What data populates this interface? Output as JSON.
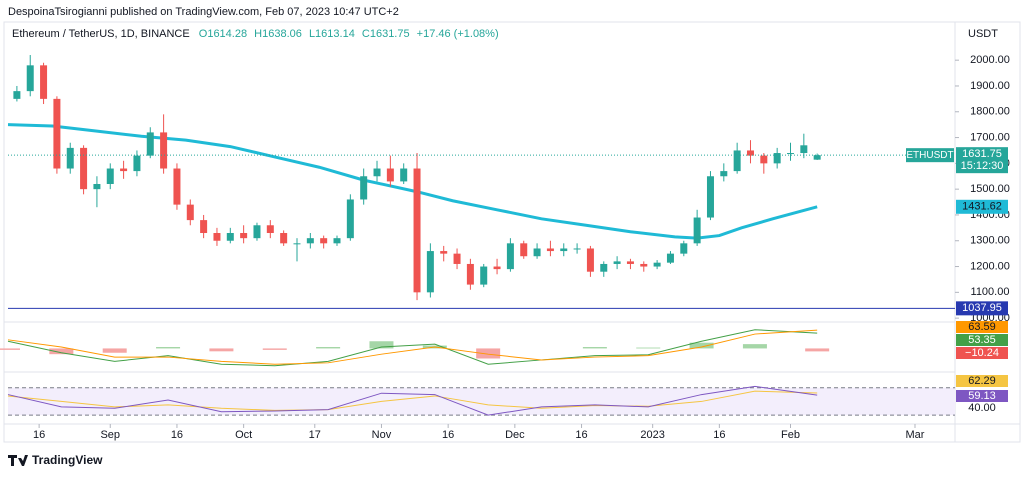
{
  "header": {
    "publisher": "DespoinaTsirogianni published on TradingView.com, Feb 07, 2023 10:47 UTC+2",
    "symbol": "Ethereum / TetherUS, 1D, BINANCE",
    "open": "O1614.28",
    "high": "H1638.06",
    "low": "L1613.14",
    "close": "C1631.75",
    "change": "+17.46 (+1.08%)"
  },
  "footer": "TradingView",
  "chart_data": {
    "type": "candlestick",
    "currency": "USDT",
    "symbol_tag": "ETHUSDT",
    "countdown": "15:12:30",
    "up_color": "#26a69a",
    "down_color": "#ef5350",
    "x": [
      2,
      5,
      8,
      11,
      14,
      17,
      20,
      23,
      26,
      29,
      32,
      35,
      38,
      41,
      44,
      47,
      50,
      53,
      56,
      59,
      62,
      65,
      68,
      71,
      74,
      77,
      80,
      83,
      86,
      89,
      92,
      95,
      98,
      101,
      104,
      107,
      110,
      113,
      116,
      119,
      122,
      125,
      128,
      131,
      134,
      137,
      140,
      143,
      146,
      149,
      152,
      155,
      158,
      161,
      164,
      167,
      170,
      173,
      176,
      179,
      182
    ],
    "open": [
      1850,
      1880,
      1980,
      1850,
      1580,
      1660,
      1500,
      1520,
      1580,
      1570,
      1630,
      1720,
      1580,
      1440,
      1380,
      1330,
      1300,
      1330,
      1310,
      1360,
      1330,
      1290,
      1290,
      1310,
      1290,
      1310,
      1460,
      1550,
      1580,
      1530,
      1580,
      1100,
      1260,
      1250,
      1210,
      1130,
      1200,
      1190,
      1290,
      1240,
      1270,
      1260,
      1270,
      1270,
      1180,
      1210,
      1220,
      1210,
      1200,
      1215,
      1250,
      1290,
      1390,
      1550,
      1570,
      1650,
      1630,
      1600,
      1640,
      1640,
      1614.28
    ],
    "high": [
      1900,
      2020,
      1990,
      1860,
      1680,
      1670,
      1550,
      1600,
      1610,
      1650,
      1740,
      1790,
      1600,
      1460,
      1400,
      1350,
      1350,
      1360,
      1370,
      1380,
      1340,
      1310,
      1330,
      1320,
      1320,
      1480,
      1580,
      1610,
      1630,
      1600,
      1640,
      1290,
      1280,
      1270,
      1230,
      1210,
      1230,
      1310,
      1300,
      1290,
      1300,
      1290,
      1290,
      1280,
      1220,
      1240,
      1230,
      1220,
      1225,
      1260,
      1300,
      1420,
      1570,
      1600,
      1680,
      1690,
      1640,
      1660,
      1680,
      1715,
      1638.06
    ],
    "low": [
      1840,
      1860,
      1830,
      1560,
      1560,
      1480,
      1430,
      1500,
      1540,
      1550,
      1620,
      1560,
      1420,
      1360,
      1310,
      1280,
      1290,
      1290,
      1300,
      1310,
      1280,
      1220,
      1270,
      1270,
      1280,
      1300,
      1440,
      1530,
      1510,
      1520,
      1070,
      1080,
      1220,
      1190,
      1110,
      1120,
      1170,
      1180,
      1230,
      1230,
      1240,
      1240,
      1250,
      1160,
      1160,
      1190,
      1190,
      1180,
      1190,
      1210,
      1240,
      1280,
      1380,
      1530,
      1560,
      1600,
      1560,
      1580,
      1610,
      1620,
      1613.14
    ],
    "close": [
      1880,
      1980,
      1850,
      1580,
      1660,
      1500,
      1520,
      1580,
      1570,
      1630,
      1720,
      1580,
      1440,
      1380,
      1330,
      1300,
      1330,
      1310,
      1360,
      1330,
      1290,
      1290,
      1310,
      1290,
      1310,
      1460,
      1550,
      1580,
      1530,
      1580,
      1100,
      1260,
      1250,
      1210,
      1130,
      1200,
      1190,
      1290,
      1240,
      1270,
      1260,
      1270,
      1270,
      1180,
      1210,
      1220,
      1210,
      1200,
      1215,
      1250,
      1290,
      1390,
      1550,
      1570,
      1650,
      1630,
      1600,
      1640,
      1640,
      1670,
      1631.75
    ],
    "xlim": [
      0,
      213
    ],
    "xticks": [
      {
        "value": 7,
        "label": "16"
      },
      {
        "value": 23,
        "label": "Sep"
      },
      {
        "value": 38,
        "label": "16"
      },
      {
        "value": 53,
        "label": "Oct"
      },
      {
        "value": 69,
        "label": "17"
      },
      {
        "value": 84,
        "label": "Nov"
      },
      {
        "value": 99,
        "label": "16"
      },
      {
        "value": 114,
        "label": "Dec"
      },
      {
        "value": 129,
        "label": "16"
      },
      {
        "value": 145,
        "label": "2023"
      },
      {
        "value": 160,
        "label": "16"
      },
      {
        "value": 176,
        "label": "Feb"
      },
      {
        "value": 204,
        "label": "Mar"
      }
    ],
    "ylim": [
      985,
      2148
    ],
    "yticks": [
      {
        "value": 1000,
        "label": "1000.00"
      },
      {
        "value": 1100,
        "label": "1100.00"
      },
      {
        "value": 1200,
        "label": "1200.00"
      },
      {
        "value": 1300,
        "label": "1300.00"
      },
      {
        "value": 1400,
        "label": "1400.00"
      },
      {
        "value": 1500,
        "label": "1500.00"
      },
      {
        "value": 1600,
        "label": "1600.00"
      },
      {
        "value": 1700,
        "label": "1700.00"
      },
      {
        "value": 1800,
        "label": "1800.00"
      },
      {
        "value": 1900,
        "label": "1900.00"
      },
      {
        "value": 2000,
        "label": "2000.00"
      }
    ],
    "moving_average": {
      "color": "#1fbad6",
      "x": [
        0,
        10,
        20,
        30,
        40,
        50,
        60,
        70,
        80,
        92,
        100,
        110,
        120,
        130,
        140,
        150,
        155,
        160,
        165,
        172,
        182
      ],
      "values": [
        1750,
        1745,
        1725,
        1705,
        1690,
        1665,
        1625,
        1585,
        1535,
        1490,
        1455,
        1420,
        1385,
        1360,
        1335,
        1315,
        1310,
        1320,
        1350,
        1385,
        1431.62
      ]
    },
    "level": {
      "value": 1037.95,
      "color": "#2739b0"
    },
    "macd": {
      "ylim": [
        -75,
        85
      ],
      "x": [
        0,
        12,
        24,
        36,
        48,
        60,
        72,
        84,
        96,
        108,
        120,
        132,
        144,
        156,
        168,
        182
      ],
      "macd": [
        25,
        -15,
        -45,
        -25,
        -55,
        -60,
        -45,
        5,
        15,
        -55,
        -40,
        -25,
        -22,
        25,
        65,
        53.35
      ],
      "macd_color": "#43a047",
      "signal": [
        30,
        5,
        -30,
        -30,
        -45,
        -55,
        -50,
        -20,
        5,
        -20,
        -40,
        -30,
        -25,
        5,
        50,
        63.59
      ],
      "signal_color": "#ff9800",
      "hist": [
        -5,
        -20,
        -15,
        5,
        -10,
        -5,
        5,
        25,
        10,
        -35,
        0,
        5,
        3,
        20,
        15,
        -10.24
      ],
      "hist_labels": {
        "2": "−10.24"
      }
    },
    "rsi": {
      "ylim": [
        20,
        90
      ],
      "bands": [
        30,
        70
      ],
      "color": "#7e57c2",
      "ma_color": "#f5c542",
      "x": [
        0,
        12,
        24,
        36,
        48,
        60,
        72,
        84,
        96,
        108,
        120,
        132,
        144,
        156,
        168,
        182
      ],
      "values": [
        60,
        42,
        40,
        52,
        35,
        36,
        38,
        62,
        60,
        30,
        42,
        45,
        42,
        60,
        72,
        59.13
      ],
      "ma": [
        58,
        50,
        42,
        45,
        40,
        37,
        38,
        50,
        58,
        45,
        40,
        44,
        43,
        50,
        65,
        62.29
      ],
      "yticks": [
        {
          "value": 40,
          "label": "40.00"
        }
      ]
    }
  }
}
